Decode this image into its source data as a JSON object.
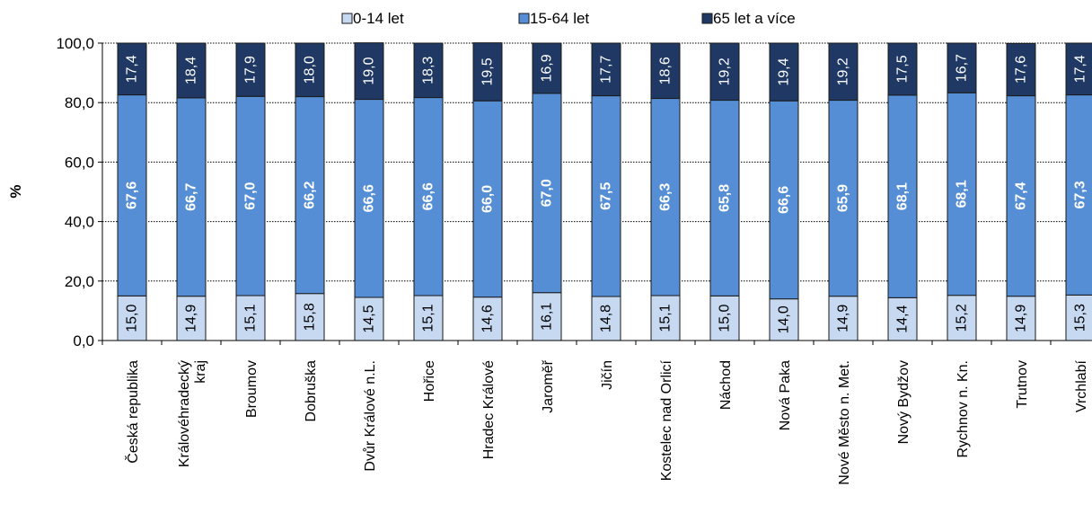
{
  "chart_data": {
    "type": "bar",
    "stacked": true,
    "categories": [
      "Česká republika",
      "Královéhradecký kraj",
      "Broumov",
      "Dobruška",
      "Dvůr Králové n.L.",
      "Hořice",
      "Hradec Králové",
      "Jaroměř",
      "Jičín",
      "Kostelec nad Orlicí",
      "Náchod",
      "Nová Paka",
      "Nové Město n. Met.",
      "Nový  Bydžov",
      "Rychnov n. Kn.",
      "Trutnov",
      "Vrchlabí"
    ],
    "series": [
      {
        "name": "0-14 let",
        "color": "#c6d9f1",
        "values": [
          15.0,
          14.9,
          15.1,
          15.8,
          14.5,
          15.1,
          14.6,
          16.1,
          14.8,
          15.1,
          15.0,
          14.0,
          14.9,
          14.4,
          15.2,
          14.9,
          15.3
        ],
        "labels": [
          "15,0",
          "14,9",
          "15,1",
          "15,8",
          "14,5",
          "15,1",
          "14,6",
          "16,1",
          "14,8",
          "15,1",
          "15,0",
          "14,0",
          "14,9",
          "14,4",
          "15,2",
          "14,9",
          "15,3"
        ]
      },
      {
        "name": "15-64 let",
        "color": "#558ed5",
        "values": [
          67.6,
          66.7,
          67.0,
          66.2,
          66.6,
          66.6,
          66.0,
          67.0,
          67.5,
          66.3,
          65.8,
          66.6,
          65.9,
          68.1,
          68.1,
          67.4,
          67.3
        ],
        "labels": [
          "67,6",
          "66,7",
          "67,0",
          "66,2",
          "66,6",
          "66,6",
          "66,0",
          "67,0",
          "67,5",
          "66,3",
          "65,8",
          "66,6",
          "65,9",
          "68,1",
          "68,1",
          "67,4",
          "67,3"
        ]
      },
      {
        "name": "65 let a více",
        "color": "#1f3864",
        "values": [
          17.4,
          18.4,
          17.9,
          18.0,
          19.0,
          18.3,
          19.5,
          16.9,
          17.7,
          18.6,
          19.2,
          19.4,
          19.2,
          17.5,
          16.7,
          17.6,
          17.4
        ],
        "labels": [
          "17,4",
          "18,4",
          "17,9",
          "18,0",
          "19,0",
          "18,3",
          "19,5",
          "16,9",
          "17,7",
          "18,6",
          "19,2",
          "19,4",
          "19,2",
          "17,5",
          "16,7",
          "17,6",
          "17,4"
        ]
      }
    ],
    "ylabel": "%",
    "xlabel": "",
    "ylim": [
      0,
      100
    ],
    "yticks": [
      0,
      20,
      40,
      60,
      80,
      100
    ],
    "ytick_labels": [
      "0,0",
      "20,0",
      "40,0",
      "60,0",
      "80,0",
      "100,0"
    ],
    "grid": "horizontal dotted",
    "legend_position": "top"
  }
}
